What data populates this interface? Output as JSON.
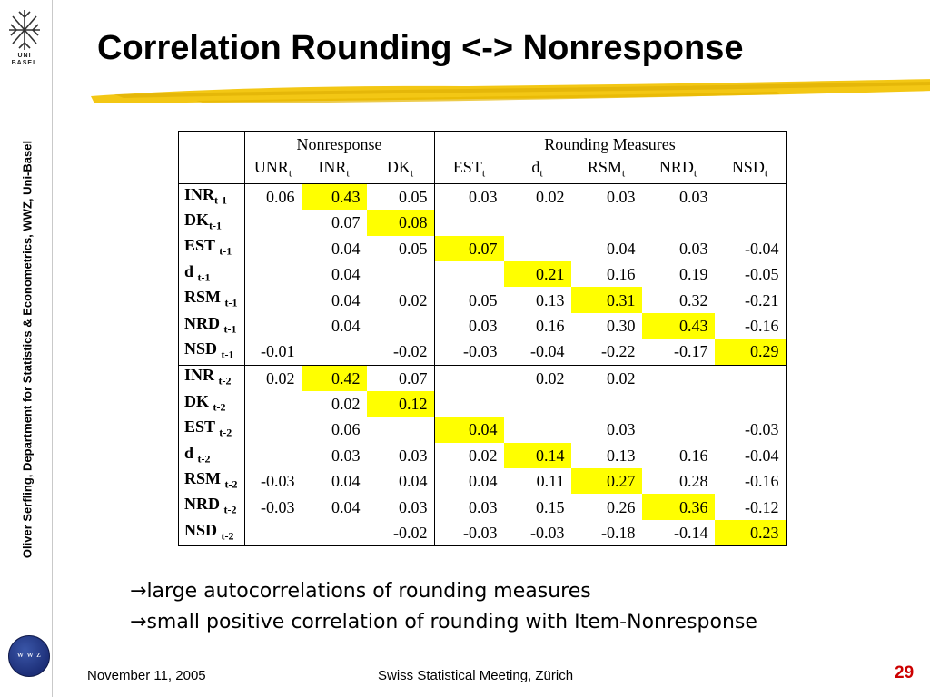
{
  "sidebar": {
    "logo_text": "UNI\nBASEL",
    "credit": "Oliver Serfling, Department for Statistics & Econometrics, WWZ,  Uni-Basel",
    "wwz_logo_text": "w w z"
  },
  "title": "Correlation Rounding <-> Nonresponse",
  "table": {
    "group_headers": [
      "Nonresponse",
      "Rounding Measures"
    ],
    "columns": [
      {
        "name": "UNR",
        "sub": "t"
      },
      {
        "name": "INR",
        "sub": "t"
      },
      {
        "name": "DK",
        "sub": "t"
      },
      {
        "name": "EST",
        "sub": "t"
      },
      {
        "name": "d",
        "sub": "t"
      },
      {
        "name": "RSM",
        "sub": "t"
      },
      {
        "name": "NRD",
        "sub": "t"
      },
      {
        "name": "NSD",
        "sub": "t"
      }
    ],
    "rows": [
      {
        "name": "INR",
        "sub": "t-1",
        "cells": [
          "0.06",
          "0.43",
          "0.05",
          "0.03",
          "0.02",
          "0.03",
          "0.03",
          ""
        ],
        "highlight": 1
      },
      {
        "name": "DK",
        "sub": "t-1",
        "cells": [
          "",
          "0.07",
          "0.08",
          "",
          "",
          "",
          "",
          ""
        ],
        "highlight": 2
      },
      {
        "name": "EST",
        "sub": "t-1",
        "cells": [
          "",
          "0.04",
          "0.05",
          "0.07",
          "",
          "0.04",
          "0.03",
          "-0.04"
        ],
        "highlight": 3
      },
      {
        "name": "d",
        "sub": "t-1",
        "cells": [
          "",
          "0.04",
          "",
          "",
          "0.21",
          "0.16",
          "0.19",
          "-0.05"
        ],
        "highlight": 4
      },
      {
        "name": "RSM",
        "sub": "t-1",
        "cells": [
          "",
          "0.04",
          "0.02",
          "0.05",
          "0.13",
          "0.31",
          "0.32",
          "-0.21"
        ],
        "highlight": 5
      },
      {
        "name": "NRD",
        "sub": "t-1",
        "cells": [
          "",
          "0.04",
          "",
          "0.03",
          "0.16",
          "0.30",
          "0.43",
          "-0.16"
        ],
        "highlight": 6
      },
      {
        "name": "NSD",
        "sub": "t-1",
        "cells": [
          "-0.01",
          "",
          "-0.02",
          "-0.03",
          "-0.04",
          "-0.22",
          "-0.17",
          "0.29"
        ],
        "highlight": 7
      },
      {
        "name": "INR",
        "sub": "t-2",
        "cells": [
          "0.02",
          "0.42",
          "0.07",
          "",
          "0.02",
          "0.02",
          "",
          ""
        ],
        "highlight": 1
      },
      {
        "name": "DK",
        "sub": "t-2",
        "cells": [
          "",
          "0.02",
          "0.12",
          "",
          "",
          "",
          "",
          ""
        ],
        "highlight": 2
      },
      {
        "name": "EST",
        "sub": "t-2",
        "cells": [
          "",
          "0.06",
          "",
          "0.04",
          "",
          "0.03",
          "",
          "-0.03"
        ],
        "highlight": 3
      },
      {
        "name": "d",
        "sub": "t-2",
        "cells": [
          "",
          "0.03",
          "0.03",
          "0.02",
          "0.14",
          "0.13",
          "0.16",
          "-0.04"
        ],
        "highlight": 4
      },
      {
        "name": "RSM",
        "sub": "t-2",
        "cells": [
          "-0.03",
          "0.04",
          "0.04",
          "0.04",
          "0.11",
          "0.27",
          "0.28",
          "-0.16"
        ],
        "highlight": 5
      },
      {
        "name": "NRD",
        "sub": "t-2",
        "cells": [
          "-0.03",
          "0.04",
          "0.03",
          "0.03",
          "0.15",
          "0.26",
          "0.36",
          "-0.12"
        ],
        "highlight": 6
      },
      {
        "name": "NSD",
        "sub": "t-2",
        "cells": [
          "",
          "",
          "-0.02",
          "-0.03",
          "-0.03",
          "-0.18",
          "-0.14",
          "0.23"
        ],
        "highlight": 7
      }
    ],
    "highlight_color": "#ffff00"
  },
  "bullets": [
    {
      "arrow": "→",
      "text": "large autocorrelations of rounding measures"
    },
    {
      "arrow": "→",
      "text": "small positive correlation of rounding with Item-Nonresponse"
    }
  ],
  "footer": {
    "date": "November 11, 2005",
    "event": "Swiss Statistical Meeting, Zürich",
    "page": "29",
    "page_color": "#cc0000"
  },
  "colors": {
    "brush_yellow": "#f2c200",
    "wwz_blue": "#1d2f78"
  }
}
